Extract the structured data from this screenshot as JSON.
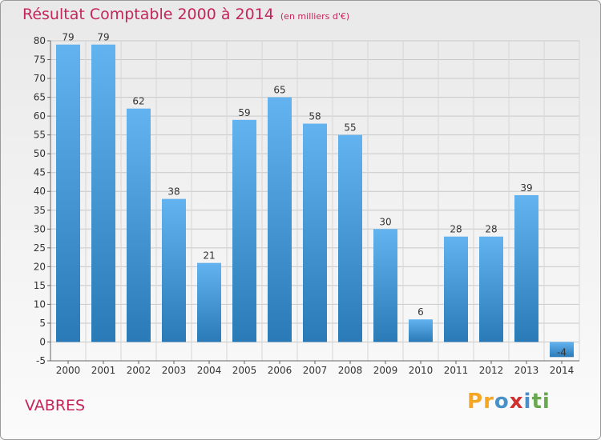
{
  "title": "Résultat Comptable 2000 à 2014",
  "subtitle": "(en milliers d'€)",
  "commune": "VABRES",
  "logo": {
    "text": "Proxiti",
    "letters": [
      "P",
      "r",
      "o",
      "x",
      "i",
      "t",
      "i"
    ],
    "colors": [
      "#f5a623",
      "#f5a623",
      "#4a90c8",
      "#d0302f",
      "#4a90c8",
      "#6aa84f",
      "#6aa84f"
    ]
  },
  "colors": {
    "title": "#c5265a",
    "bar_top": "#62b3ef",
    "bar_bottom": "#2a7ab8"
  },
  "chart_data": {
    "type": "bar",
    "categories": [
      "2000",
      "2001",
      "2002",
      "2003",
      "2004",
      "2005",
      "2006",
      "2007",
      "2008",
      "2009",
      "2010",
      "2011",
      "2012",
      "2013",
      "2014"
    ],
    "values": [
      79,
      79,
      62,
      38,
      21,
      59,
      65,
      58,
      55,
      30,
      6,
      28,
      28,
      39,
      -4
    ],
    "data_labels": [
      "79",
      "79",
      "62",
      "38",
      "21",
      "59",
      "65",
      "58",
      "55",
      "30",
      "6",
      "28",
      "28",
      "39",
      "-4"
    ],
    "y_ticks": [
      -5,
      0,
      5,
      10,
      15,
      20,
      25,
      30,
      35,
      40,
      45,
      50,
      55,
      60,
      65,
      70,
      75,
      80
    ],
    "ylim": [
      -5,
      80
    ],
    "grid": true,
    "legend": "none"
  }
}
